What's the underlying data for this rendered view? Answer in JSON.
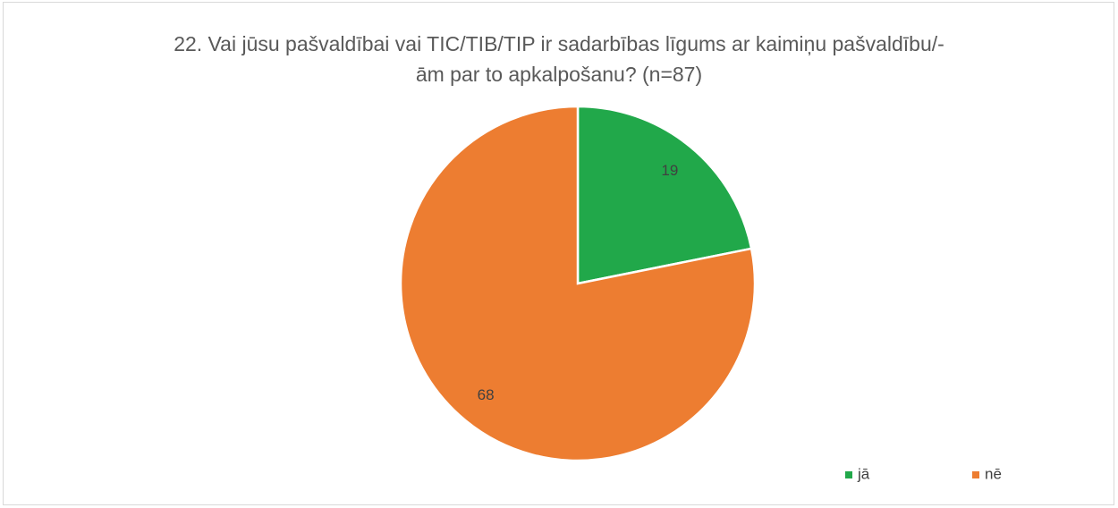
{
  "chart_data": {
    "type": "pie",
    "title": "22. Vai jūsu pašvaldībai vai TIC/TIB/TIP ir sadarbības līgums ar kaimiņu pašvaldību/-ām par to apkalpošanu? (n=87)",
    "categories": [
      "jā",
      "nē"
    ],
    "values": [
      19,
      68
    ],
    "colors": [
      "#21a84a",
      "#ed7d31"
    ],
    "legend": "bottom-right"
  }
}
